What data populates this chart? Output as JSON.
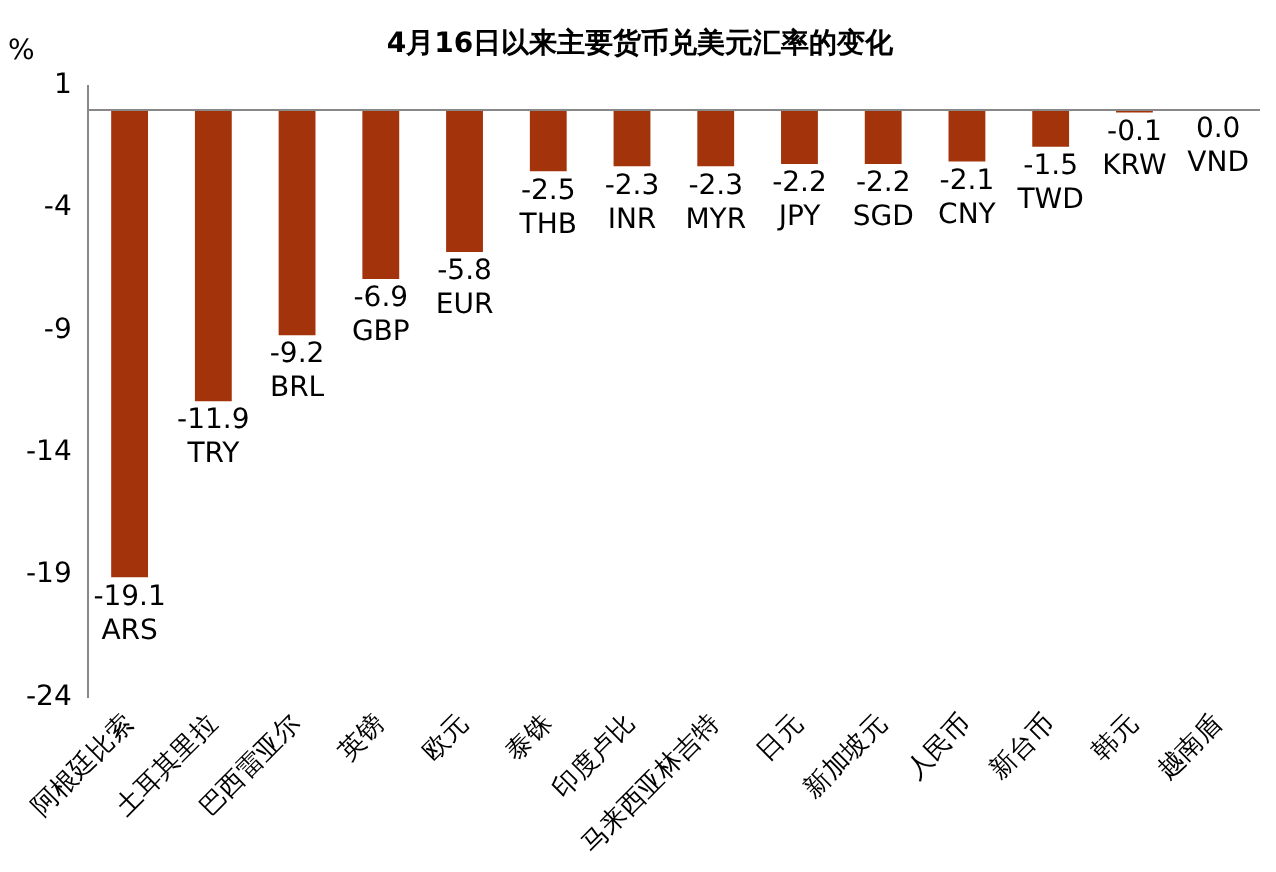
{
  "chart_data": {
    "type": "bar",
    "title": "4月16日以来主要货币兑美元汇率的变化",
    "ylabel": "%",
    "categories": [
      "阿根廷比索",
      "土耳其里拉",
      "巴西雷亚尔",
      "英镑",
      "欧元",
      "泰铢",
      "印度卢比",
      "马来西亚林吉特",
      "日元",
      "新加坡元",
      "人民币",
      "新台币",
      "韩元",
      "越南盾"
    ],
    "values": [
      -19.1,
      -11.9,
      -9.2,
      -6.9,
      -5.8,
      -2.5,
      -2.3,
      -2.3,
      -2.2,
      -2.2,
      -2.1,
      -1.5,
      -0.1,
      0.0
    ],
    "value_labels": [
      "-19.1\nARS",
      "-11.9\nTRY",
      "-9.2\nBRL",
      "-6.9\nGBP",
      "-5.8\nEUR",
      "-2.5\nTHB",
      "-2.3\nINR",
      "-2.3\nMYR",
      "-2.2\nJPY",
      "-2.2\nSGD",
      "-2.1\nCNY",
      "-1.5\nTWD",
      "-0.1\nKRW",
      "0.0\nVND"
    ],
    "color": "#a3330b",
    "ylim": [
      -24,
      1
    ],
    "yticks": [
      1,
      -4,
      -9,
      -14,
      -19,
      -24
    ],
    "grid": false,
    "legend": false
  }
}
